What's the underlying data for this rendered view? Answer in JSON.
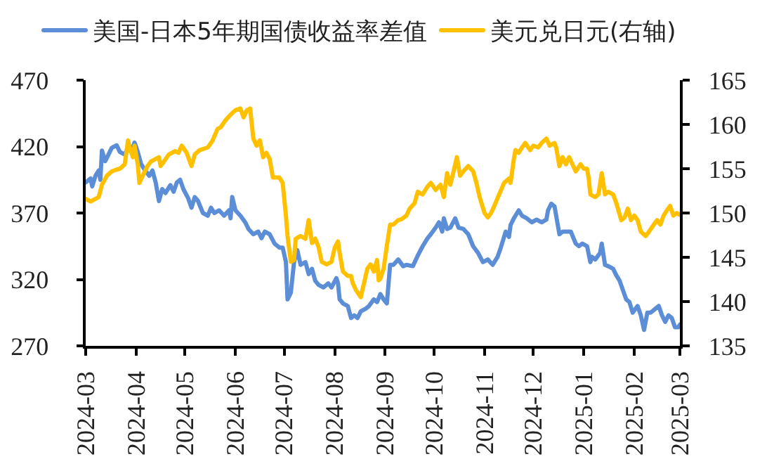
{
  "chart_data": {
    "type": "line",
    "legend": "top",
    "grid": false,
    "xlim": [
      "2024-03-01",
      "2025-03-01"
    ],
    "xticks": [
      "2024-03",
      "2024-04",
      "2024-05",
      "2024-06",
      "2024-07",
      "2024-08",
      "2024-09",
      "2024-10",
      "2024-11",
      "2024-12",
      "2025-01",
      "2025-02",
      "2025-03"
    ],
    "ylim": [
      270,
      470
    ],
    "yticks": [
      270,
      320,
      370,
      420,
      470
    ],
    "y2lim": [
      135,
      165
    ],
    "y2ticks": [
      135,
      140,
      145,
      150,
      155,
      160,
      165
    ],
    "series": [
      {
        "name": "美国-日本5年期国债收益率差值",
        "color": "#5b8ed6",
        "x": [
          "2024-03-01",
          "2024-03-04",
          "2024-03-05",
          "2024-03-07",
          "2024-03-09",
          "2024-03-10",
          "2024-03-11",
          "2024-03-13",
          "2024-03-15",
          "2024-03-17",
          "2024-03-20",
          "2024-03-22",
          "2024-03-25",
          "2024-03-27",
          "2024-03-29",
          "2024-03-31",
          "2024-04-02",
          "2024-04-04",
          "2024-04-06",
          "2024-04-09",
          "2024-04-11",
          "2024-04-13",
          "2024-04-15",
          "2024-04-17",
          "2024-04-19",
          "2024-04-22",
          "2024-04-24",
          "2024-04-26",
          "2024-04-28",
          "2024-04-30",
          "2024-05-03",
          "2024-05-05",
          "2024-05-07",
          "2024-05-09",
          "2024-05-12",
          "2024-05-15",
          "2024-05-17",
          "2024-05-19",
          "2024-05-22",
          "2024-05-25",
          "2024-05-28",
          "2024-05-29",
          "2024-05-30",
          "2024-06-01",
          "2024-06-04",
          "2024-06-07",
          "2024-06-09",
          "2024-06-12",
          "2024-06-15",
          "2024-06-17",
          "2024-06-19",
          "2024-06-22",
          "2024-06-25",
          "2024-06-28",
          "2024-06-30",
          "2024-07-02",
          "2024-07-03",
          "2024-07-05",
          "2024-07-07",
          "2024-07-09",
          "2024-07-11",
          "2024-07-14",
          "2024-07-16",
          "2024-07-18",
          "2024-07-20",
          "2024-07-22",
          "2024-07-25",
          "2024-07-28",
          "2024-07-30",
          "2024-08-02",
          "2024-08-03",
          "2024-08-04",
          "2024-08-06",
          "2024-08-09",
          "2024-08-11",
          "2024-08-13",
          "2024-08-15",
          "2024-08-17",
          "2024-08-20",
          "2024-08-22",
          "2024-08-25",
          "2024-08-27",
          "2024-08-29",
          "2024-08-31",
          "2024-09-02",
          "2024-09-04",
          "2024-09-06",
          "2024-09-09",
          "2024-09-12",
          "2024-09-14",
          "2024-09-18",
          "2024-09-21",
          "2024-09-24",
          "2024-09-27",
          "2024-09-29",
          "2024-10-02",
          "2024-10-04",
          "2024-10-06",
          "2024-10-07",
          "2024-10-09",
          "2024-10-11",
          "2024-10-14",
          "2024-10-16",
          "2024-10-19",
          "2024-10-22",
          "2024-10-25",
          "2024-10-28",
          "2024-10-31",
          "2024-11-03",
          "2024-11-06",
          "2024-11-09",
          "2024-11-11",
          "2024-11-14",
          "2024-11-16",
          "2024-11-17",
          "2024-11-19",
          "2024-11-22",
          "2024-11-24",
          "2024-11-27",
          "2024-11-30",
          "2024-12-03",
          "2024-12-06",
          "2024-12-09",
          "2024-12-10",
          "2024-12-12",
          "2024-12-14",
          "2024-12-16",
          "2024-12-17",
          "2024-12-19",
          "2024-12-22",
          "2024-12-24",
          "2024-12-27",
          "2024-12-29",
          "2024-12-31",
          "2025-01-03",
          "2025-01-05",
          "2025-01-06",
          "2025-01-08",
          "2025-01-11",
          "2025-01-12",
          "2025-01-14",
          "2025-01-16",
          "2025-01-19",
          "2025-01-21",
          "2025-01-23",
          "2025-01-25",
          "2025-01-27",
          "2025-01-29",
          "2025-01-31",
          "2025-02-03",
          "2025-02-05",
          "2025-02-07",
          "2025-02-09",
          "2025-02-11",
          "2025-02-14",
          "2025-02-16",
          "2025-02-18",
          "2025-02-20",
          "2025-02-22",
          "2025-02-24",
          "2025-02-26",
          "2025-02-28",
          "2025-03-01"
        ],
        "values": [
          393,
          396,
          390,
          398,
          402,
          395,
          417,
          409,
          414,
          419,
          421,
          416,
          414,
          419,
          416,
          423,
          416,
          407,
          403,
          398,
          402,
          393,
          379,
          388,
          385,
          391,
          386,
          393,
          395,
          388,
          381,
          374,
          382,
          379,
          370,
          368,
          374,
          370,
          372,
          368,
          372,
          366,
          382,
          372,
          368,
          363,
          358,
          354,
          356,
          351,
          356,
          354,
          347,
          344,
          344,
          333,
          305,
          310,
          333,
          342,
          331,
          333,
          324,
          328,
          319,
          316,
          314,
          317,
          314,
          321,
          317,
          305,
          302,
          300,
          291,
          293,
          291,
          296,
          298,
          300,
          305,
          303,
          309,
          305,
          302,
          331,
          331,
          335,
          330,
          331,
          330,
          338,
          345,
          351,
          354,
          359,
          363,
          356,
          366,
          358,
          359,
          366,
          359,
          358,
          354,
          345,
          340,
          333,
          335,
          331,
          337,
          344,
          356,
          352,
          361,
          366,
          372,
          368,
          366,
          363,
          365,
          363,
          365,
          372,
          377,
          375,
          361,
          354,
          356,
          356,
          356,
          347,
          345,
          347,
          345,
          333,
          337,
          335,
          340,
          347,
          331,
          330,
          328,
          323,
          319,
          312,
          305,
          303,
          295,
          300,
          293,
          282,
          295,
          295,
          298,
          300,
          293,
          288,
          293,
          291,
          284,
          284,
          286
        ]
      },
      {
        "name": "美元兑日元(右轴)",
        "color": "#ffc000",
        "axis": "y2",
        "x": [
          "2024-03-01",
          "2024-03-04",
          "2024-03-07",
          "2024-03-09",
          "2024-03-11",
          "2024-03-14",
          "2024-03-17",
          "2024-03-20",
          "2024-03-22",
          "2024-03-25",
          "2024-03-27",
          "2024-03-28",
          "2024-03-30",
          "2024-03-31",
          "2024-04-02",
          "2024-04-03",
          "2024-04-05",
          "2024-04-08",
          "2024-04-10",
          "2024-04-13",
          "2024-04-15",
          "2024-04-16",
          "2024-04-18",
          "2024-04-21",
          "2024-04-25",
          "2024-04-27",
          "2024-04-29",
          "2024-05-02",
          "2024-05-05",
          "2024-05-07",
          "2024-05-10",
          "2024-05-15",
          "2024-05-18",
          "2024-05-21",
          "2024-05-23",
          "2024-05-26",
          "2024-05-29",
          "2024-06-01",
          "2024-06-04",
          "2024-06-06",
          "2024-06-08",
          "2024-06-10",
          "2024-06-12",
          "2024-06-14",
          "2024-06-16",
          "2024-06-18",
          "2024-06-20",
          "2024-06-22",
          "2024-06-24",
          "2024-06-28",
          "2024-06-30",
          "2024-07-02",
          "2024-07-03",
          "2024-07-05",
          "2024-07-07",
          "2024-07-08",
          "2024-07-11",
          "2024-07-14",
          "2024-07-16",
          "2024-07-18",
          "2024-07-20",
          "2024-07-22",
          "2024-07-24",
          "2024-07-27",
          "2024-07-30",
          "2024-08-01",
          "2024-08-03",
          "2024-08-04",
          "2024-08-06",
          "2024-08-09",
          "2024-08-11",
          "2024-08-12",
          "2024-08-14",
          "2024-08-17",
          "2024-08-19",
          "2024-08-21",
          "2024-08-23",
          "2024-08-25",
          "2024-08-27",
          "2024-08-28",
          "2024-08-29",
          "2024-08-31",
          "2024-09-02",
          "2024-09-04",
          "2024-09-06",
          "2024-09-09",
          "2024-09-11",
          "2024-09-14",
          "2024-09-16",
          "2024-09-19",
          "2024-09-21",
          "2024-09-24",
          "2024-09-27",
          "2024-09-29",
          "2024-10-02",
          "2024-10-05",
          "2024-10-07",
          "2024-10-09",
          "2024-10-11",
          "2024-10-13",
          "2024-10-15",
          "2024-10-17",
          "2024-10-19",
          "2024-10-22",
          "2024-10-25",
          "2024-10-27",
          "2024-10-29",
          "2024-11-01",
          "2024-11-03",
          "2024-11-05",
          "2024-11-07",
          "2024-11-10",
          "2024-11-13",
          "2024-11-16",
          "2024-11-17",
          "2024-11-19",
          "2024-11-20",
          "2024-11-22",
          "2024-11-24",
          "2024-11-26",
          "2024-11-29",
          "2024-12-01",
          "2024-12-04",
          "2024-12-06",
          "2024-12-09",
          "2024-12-11",
          "2024-12-14",
          "2024-12-15",
          "2024-12-17",
          "2024-12-19",
          "2024-12-21",
          "2024-12-23",
          "2024-12-25",
          "2024-12-27",
          "2024-12-30",
          "2025-01-01",
          "2025-01-03",
          "2025-01-04",
          "2025-01-05",
          "2025-01-08",
          "2025-01-10",
          "2025-01-12",
          "2025-01-14",
          "2025-01-16",
          "2025-01-19",
          "2025-01-21",
          "2025-01-24",
          "2025-01-26",
          "2025-01-28",
          "2025-01-30",
          "2025-02-01",
          "2025-02-03",
          "2025-02-05",
          "2025-02-08",
          "2025-02-10",
          "2025-02-13",
          "2025-02-15",
          "2025-02-17",
          "2025-02-19",
          "2025-02-21",
          "2025-02-23",
          "2025-02-25",
          "2025-02-27",
          "2025-03-01"
        ],
        "values": [
          151.6,
          151.3,
          151.6,
          151.8,
          153.2,
          154.2,
          154.7,
          154.9,
          155.0,
          155.5,
          158.2,
          157.4,
          156.3,
          157.6,
          155.5,
          153.4,
          154.2,
          155.3,
          155.8,
          156.1,
          156.3,
          155.3,
          155.8,
          156.6,
          157.0,
          156.8,
          157.6,
          156.8,
          155.3,
          156.6,
          157.1,
          157.4,
          158.2,
          159.5,
          159.7,
          160.5,
          161.1,
          161.6,
          161.8,
          160.8,
          161.6,
          161.8,
          158.4,
          157.6,
          158.2,
          156.3,
          156.8,
          156.1,
          154.0,
          154.0,
          153.4,
          149.7,
          147.4,
          144.5,
          144.7,
          147.1,
          147.4,
          147.1,
          149.2,
          146.6,
          147.1,
          146.2,
          144.5,
          144.2,
          144.5,
          146.1,
          146.8,
          145.5,
          143.4,
          142.9,
          142.9,
          142.1,
          141.3,
          140.5,
          142.1,
          143.7,
          144.2,
          143.4,
          144.7,
          142.4,
          142.6,
          143.7,
          146.3,
          148.7,
          148.7,
          149.2,
          149.3,
          149.7,
          150.5,
          151.1,
          152.4,
          152.1,
          153.0,
          153.4,
          152.6,
          153.2,
          151.8,
          154.5,
          153.2,
          154.7,
          156.3,
          154.2,
          154.7,
          155.3,
          154.7,
          153.4,
          151.8,
          150.0,
          149.5,
          150.0,
          150.8,
          152.1,
          153.4,
          153.9,
          153.4,
          156.1,
          157.1,
          156.8,
          157.4,
          157.9,
          157.1,
          157.6,
          157.4,
          157.9,
          158.4,
          157.6,
          157.9,
          157.4,
          155.3,
          156.3,
          155.5,
          156.3,
          155.5,
          154.7,
          155.5,
          155.0,
          155.0,
          153.9,
          152.1,
          151.8,
          152.1,
          154.5,
          152.1,
          152.4,
          152.1,
          151.1,
          149.2,
          149.5,
          150.5,
          149.2,
          149.7,
          149.2,
          147.9,
          147.4,
          147.9,
          148.7,
          149.2,
          148.7,
          149.7,
          150.3,
          150.8,
          149.7,
          150.0,
          149.8
        ]
      }
    ]
  }
}
